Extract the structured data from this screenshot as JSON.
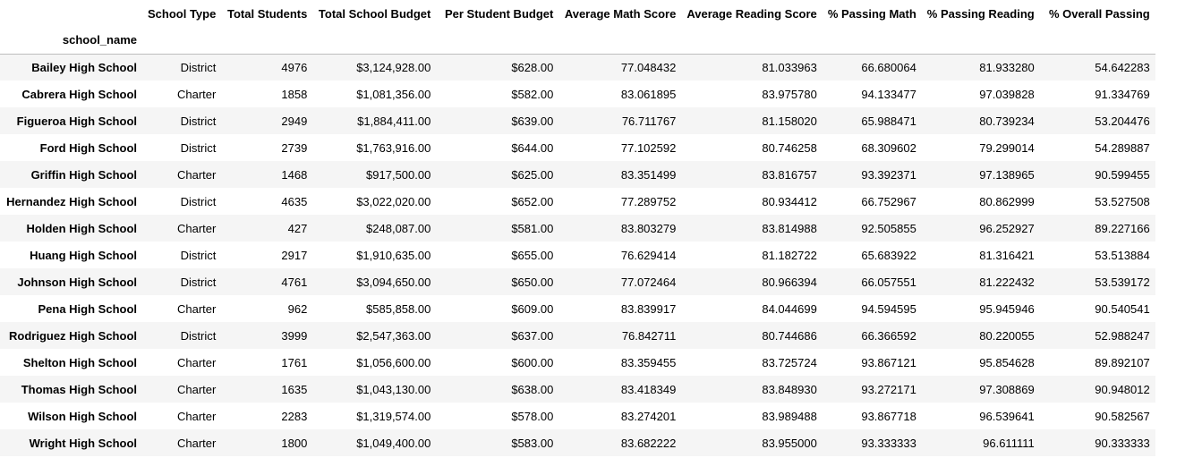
{
  "table": {
    "index_name": "school_name",
    "columns": [
      "School Type",
      "Total Students",
      "Total School Budget",
      "Per Student Budget",
      "Average Math Score",
      "Average Reading Score",
      "% Passing Math",
      "% Passing Reading",
      "% Overall Passing"
    ],
    "rows": [
      {
        "name": "Bailey High School",
        "cells": [
          "District",
          "4976",
          "$3,124,928.00",
          "$628.00",
          "77.048432",
          "81.033963",
          "66.680064",
          "81.933280",
          "54.642283"
        ]
      },
      {
        "name": "Cabrera High School",
        "cells": [
          "Charter",
          "1858",
          "$1,081,356.00",
          "$582.00",
          "83.061895",
          "83.975780",
          "94.133477",
          "97.039828",
          "91.334769"
        ]
      },
      {
        "name": "Figueroa High School",
        "cells": [
          "District",
          "2949",
          "$1,884,411.00",
          "$639.00",
          "76.711767",
          "81.158020",
          "65.988471",
          "80.739234",
          "53.204476"
        ]
      },
      {
        "name": "Ford High School",
        "cells": [
          "District",
          "2739",
          "$1,763,916.00",
          "$644.00",
          "77.102592",
          "80.746258",
          "68.309602",
          "79.299014",
          "54.289887"
        ]
      },
      {
        "name": "Griffin High School",
        "cells": [
          "Charter",
          "1468",
          "$917,500.00",
          "$625.00",
          "83.351499",
          "83.816757",
          "93.392371",
          "97.138965",
          "90.599455"
        ]
      },
      {
        "name": "Hernandez High School",
        "cells": [
          "District",
          "4635",
          "$3,022,020.00",
          "$652.00",
          "77.289752",
          "80.934412",
          "66.752967",
          "80.862999",
          "53.527508"
        ]
      },
      {
        "name": "Holden High School",
        "cells": [
          "Charter",
          "427",
          "$248,087.00",
          "$581.00",
          "83.803279",
          "83.814988",
          "92.505855",
          "96.252927",
          "89.227166"
        ]
      },
      {
        "name": "Huang High School",
        "cells": [
          "District",
          "2917",
          "$1,910,635.00",
          "$655.00",
          "76.629414",
          "81.182722",
          "65.683922",
          "81.316421",
          "53.513884"
        ]
      },
      {
        "name": "Johnson High School",
        "cells": [
          "District",
          "4761",
          "$3,094,650.00",
          "$650.00",
          "77.072464",
          "80.966394",
          "66.057551",
          "81.222432",
          "53.539172"
        ]
      },
      {
        "name": "Pena High School",
        "cells": [
          "Charter",
          "962",
          "$585,858.00",
          "$609.00",
          "83.839917",
          "84.044699",
          "94.594595",
          "95.945946",
          "90.540541"
        ]
      },
      {
        "name": "Rodriguez High School",
        "cells": [
          "District",
          "3999",
          "$2,547,363.00",
          "$637.00",
          "76.842711",
          "80.744686",
          "66.366592",
          "80.220055",
          "52.988247"
        ]
      },
      {
        "name": "Shelton High School",
        "cells": [
          "Charter",
          "1761",
          "$1,056,600.00",
          "$600.00",
          "83.359455",
          "83.725724",
          "93.867121",
          "95.854628",
          "89.892107"
        ]
      },
      {
        "name": "Thomas High School",
        "cells": [
          "Charter",
          "1635",
          "$1,043,130.00",
          "$638.00",
          "83.418349",
          "83.848930",
          "93.272171",
          "97.308869",
          "90.948012"
        ]
      },
      {
        "name": "Wilson High School",
        "cells": [
          "Charter",
          "2283",
          "$1,319,574.00",
          "$578.00",
          "83.274201",
          "83.989488",
          "93.867718",
          "96.539641",
          "90.582567"
        ]
      },
      {
        "name": "Wright High School",
        "cells": [
          "Charter",
          "1800",
          "$1,049,400.00",
          "$583.00",
          "83.682222",
          "83.955000",
          "93.333333",
          "96.611111",
          "90.333333"
        ]
      }
    ]
  }
}
